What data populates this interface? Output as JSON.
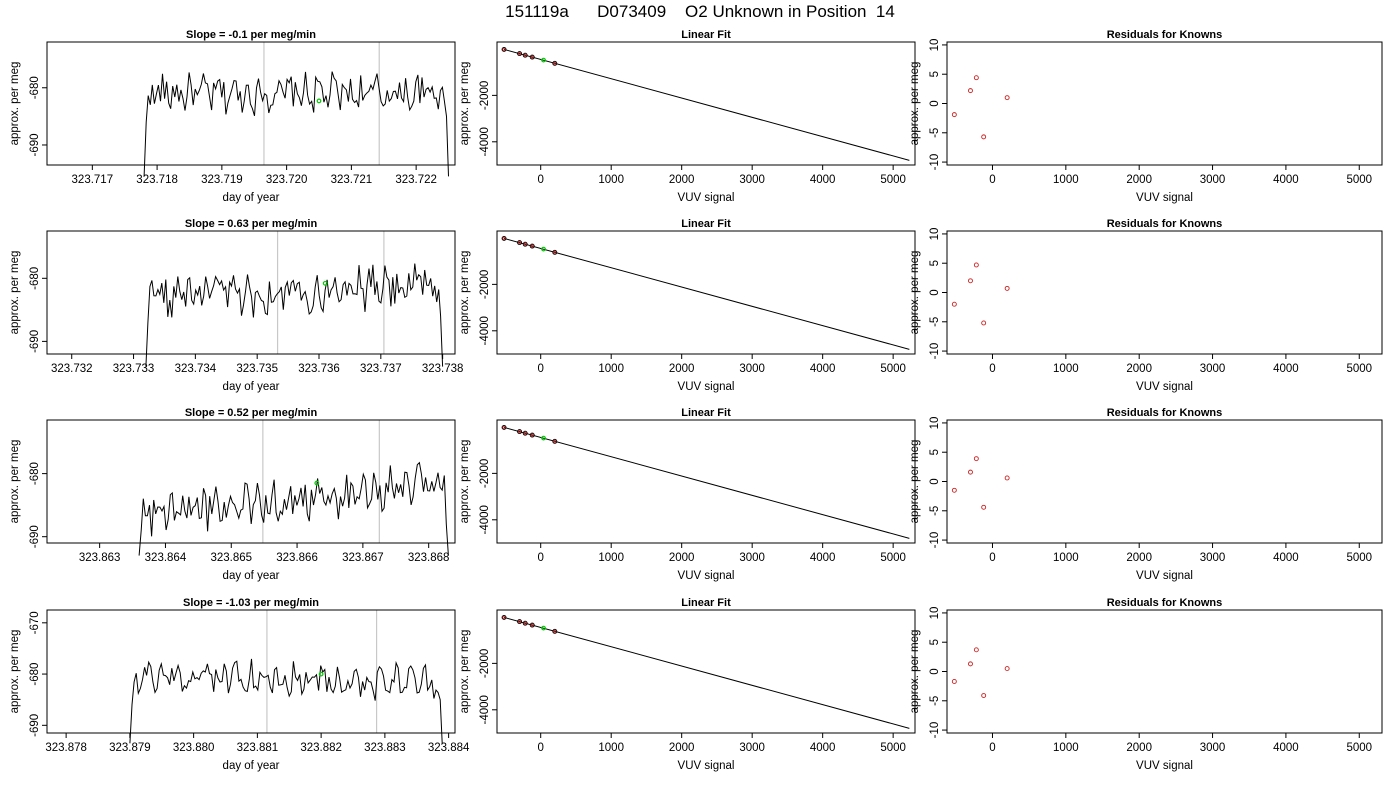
{
  "page": {
    "title": "151119a      D073409    O2 Unknown in Position  14"
  },
  "colors": {
    "trace": "#000000",
    "marker_green": "#00cc00",
    "residual_red": "#cc2222",
    "vertical_guides": "#c8c8c8"
  },
  "chart_data": [
    {
      "type": "line",
      "panel": "slope-row-1",
      "title": "Slope =  -0.1  per meg/min",
      "xlabel": "day of year",
      "ylabel": "approx. per meg",
      "xlim": [
        323.7163,
        323.7226
      ],
      "ylim": [
        -693.5,
        -672
      ],
      "xticks": [
        323.717,
        323.718,
        323.719,
        323.72,
        323.721,
        323.722
      ],
      "xtick_labels": [
        "323.717",
        "323.718",
        "323.719",
        "323.720",
        "323.721",
        "323.722"
      ],
      "yticks": [
        -690,
        -680
      ],
      "ytick_labels": [
        "-690",
        "-680"
      ],
      "vlines": [
        323.71965,
        323.72143
      ],
      "trace_start": 323.7178,
      "trace_end": 323.7225,
      "trace_level": -681,
      "trace_trend": 0.0,
      "marker": {
        "x": 323.7205,
        "y": -682.3
      }
    },
    {
      "type": "scatter",
      "panel": "fit-row-1",
      "title": "Linear Fit",
      "xlabel": "VUV signal",
      "ylabel": "approx. per meg",
      "xlim": [
        -620,
        5310
      ],
      "ylim": [
        -5000,
        300
      ],
      "xticks": [
        0,
        1000,
        2000,
        3000,
        4000,
        5000
      ],
      "xtick_labels": [
        "0",
        "1000",
        "2000",
        "3000",
        "4000",
        "5000"
      ],
      "yticks": [
        -4000,
        -2000
      ],
      "ytick_labels": [
        "-4000",
        "-2000"
      ],
      "fit_line": {
        "x": [
          -520,
          5230
        ],
        "y": [
          -20,
          -4800
        ]
      },
      "points": {
        "x": [
          -520,
          -300,
          -220,
          -120,
          200
        ],
        "y": [
          -20,
          -200,
          -270,
          -350,
          -620
        ]
      },
      "marker": {
        "x": 40,
        "y": -480
      }
    },
    {
      "type": "scatter",
      "panel": "residual-row-1",
      "title": "Residuals for Knowns",
      "xlabel": "VUV signal",
      "ylabel": "approx. per meg",
      "xlim": [
        -620,
        5310
      ],
      "ylim": [
        -10.5,
        10.5
      ],
      "xticks": [
        0,
        1000,
        2000,
        3000,
        4000,
        5000
      ],
      "xtick_labels": [
        "0",
        "1000",
        "2000",
        "3000",
        "4000",
        "5000"
      ],
      "yticks": [
        -10,
        -5,
        0,
        5,
        10
      ],
      "ytick_labels": [
        "-10",
        "-5",
        "0",
        "5",
        "10"
      ],
      "points": {
        "x": [
          -520,
          -300,
          -220,
          -120,
          200
        ],
        "y": [
          -1.9,
          2.2,
          4.4,
          -5.7,
          1.0
        ]
      }
    },
    {
      "type": "line",
      "panel": "slope-row-2",
      "title": "Slope =  0.63  per meg/min",
      "xlabel": "day of year",
      "ylabel": "approx. per meg",
      "xlim": [
        323.7316,
        323.7382
      ],
      "ylim": [
        -692,
        -672.5
      ],
      "xticks": [
        323.732,
        323.733,
        323.734,
        323.735,
        323.736,
        323.737,
        323.738
      ],
      "xtick_labels": [
        "323.732",
        "323.733",
        "323.734",
        "323.735",
        "323.736",
        "323.737",
        "323.738"
      ],
      "yticks": [
        -690,
        -680
      ],
      "ytick_labels": [
        "-690",
        "-680"
      ],
      "vlines": [
        323.73533,
        323.73705
      ],
      "trace_start": 323.7332,
      "trace_end": 323.738,
      "trace_level": -682,
      "trace_trend": 2.0,
      "marker": {
        "x": 323.7361,
        "y": -680.8
      }
    },
    {
      "type": "scatter",
      "panel": "fit-row-2",
      "title": "Linear Fit",
      "xlabel": "VUV signal",
      "ylabel": "approx. per meg",
      "xlim": [
        -620,
        5310
      ],
      "ylim": [
        -5000,
        300
      ],
      "xticks": [
        0,
        1000,
        2000,
        3000,
        4000,
        5000
      ],
      "xtick_labels": [
        "0",
        "1000",
        "2000",
        "3000",
        "4000",
        "5000"
      ],
      "yticks": [
        -4000,
        -2000
      ],
      "ytick_labels": [
        "-4000",
        "-2000"
      ],
      "fit_line": {
        "x": [
          -520,
          5230
        ],
        "y": [
          -20,
          -4800
        ]
      },
      "points": {
        "x": [
          -520,
          -300,
          -220,
          -120,
          200
        ],
        "y": [
          -20,
          -200,
          -270,
          -350,
          -620
        ]
      },
      "marker": {
        "x": 40,
        "y": -480
      }
    },
    {
      "type": "scatter",
      "panel": "residual-row-2",
      "title": "Residuals for Knowns",
      "xlabel": "VUV signal",
      "ylabel": "approx. per meg",
      "xlim": [
        -620,
        5310
      ],
      "ylim": [
        -10.5,
        10.5
      ],
      "xticks": [
        0,
        1000,
        2000,
        3000,
        4000,
        5000
      ],
      "xtick_labels": [
        "0",
        "1000",
        "2000",
        "3000",
        "4000",
        "5000"
      ],
      "yticks": [
        -10,
        -5,
        0,
        5,
        10
      ],
      "ytick_labels": [
        "-10",
        "-5",
        "0",
        "5",
        "10"
      ],
      "points": {
        "x": [
          -520,
          -300,
          -220,
          -120,
          200
        ],
        "y": [
          -2.0,
          2.0,
          4.7,
          -5.2,
          0.7
        ]
      }
    },
    {
      "type": "line",
      "panel": "slope-row-3",
      "title": "Slope =  0.52  per meg/min",
      "xlabel": "day of year",
      "ylabel": "approx. per meg",
      "xlim": [
        323.8622,
        323.8684
      ],
      "ylim": [
        -691,
        -671.5
      ],
      "xticks": [
        323.863,
        323.864,
        323.865,
        323.866,
        323.867,
        323.868
      ],
      "xtick_labels": [
        "323.863",
        "323.864",
        "323.865",
        "323.866",
        "323.867",
        "323.868"
      ],
      "yticks": [
        -690,
        -680
      ],
      "ytick_labels": [
        "-690",
        "-680"
      ],
      "vlines": [
        323.86548,
        323.86725
      ],
      "trace_start": 323.8636,
      "trace_end": 323.8683,
      "trace_level": -684,
      "trace_trend": 5.0,
      "marker": {
        "x": 323.8663,
        "y": -681.5
      }
    },
    {
      "type": "scatter",
      "panel": "fit-row-3",
      "title": "Linear Fit",
      "xlabel": "VUV signal",
      "ylabel": "approx. per meg",
      "xlim": [
        -620,
        5310
      ],
      "ylim": [
        -5000,
        300
      ],
      "xticks": [
        0,
        1000,
        2000,
        3000,
        4000,
        5000
      ],
      "xtick_labels": [
        "0",
        "1000",
        "2000",
        "3000",
        "4000",
        "5000"
      ],
      "yticks": [
        -4000,
        -2000
      ],
      "ytick_labels": [
        "-4000",
        "-2000"
      ],
      "fit_line": {
        "x": [
          -520,
          5230
        ],
        "y": [
          -20,
          -4800
        ]
      },
      "points": {
        "x": [
          -520,
          -300,
          -220,
          -120,
          200
        ],
        "y": [
          -20,
          -200,
          -270,
          -350,
          -620
        ]
      },
      "marker": {
        "x": 40,
        "y": -480
      }
    },
    {
      "type": "scatter",
      "panel": "residual-row-3",
      "title": "Residuals for Knowns",
      "xlabel": "VUV signal",
      "ylabel": "approx. per meg",
      "xlim": [
        -620,
        5310
      ],
      "ylim": [
        -10.5,
        10.5
      ],
      "xticks": [
        0,
        1000,
        2000,
        3000,
        4000,
        5000
      ],
      "xtick_labels": [
        "0",
        "1000",
        "2000",
        "3000",
        "4000",
        "5000"
      ],
      "yticks": [
        -10,
        -5,
        0,
        5,
        10
      ],
      "ytick_labels": [
        "-10",
        "-5",
        "0",
        "5",
        "10"
      ],
      "points": {
        "x": [
          -520,
          -300,
          -220,
          -120,
          200
        ],
        "y": [
          -1.5,
          1.6,
          3.9,
          -4.4,
          0.6
        ]
      }
    },
    {
      "type": "line",
      "panel": "slope-row-4",
      "title": "Slope =  -1.03  per meg/min",
      "xlabel": "day of year",
      "ylabel": "approx. per meg",
      "xlim": [
        323.8777,
        323.8841
      ],
      "ylim": [
        -691.5,
        -667.5
      ],
      "xticks": [
        323.878,
        323.879,
        323.88,
        323.881,
        323.882,
        323.883,
        323.884
      ],
      "xtick_labels": [
        "323.878",
        "323.879",
        "323.880",
        "323.881",
        "323.882",
        "323.883",
        "323.884"
      ],
      "yticks": [
        -690,
        -680,
        -670
      ],
      "ytick_labels": [
        "-690",
        "-680",
        "-670"
      ],
      "vlines": [
        323.88115,
        323.88287
      ],
      "trace_start": 323.879,
      "trace_end": 323.8839,
      "trace_level": -681,
      "trace_trend": -1.0,
      "marker": {
        "x": 323.882,
        "y": -680.0
      }
    },
    {
      "type": "scatter",
      "panel": "fit-row-4",
      "title": "Linear Fit",
      "xlabel": "VUV signal",
      "ylabel": "approx. per meg",
      "xlim": [
        -620,
        5310
      ],
      "ylim": [
        -5000,
        300
      ],
      "xticks": [
        0,
        1000,
        2000,
        3000,
        4000,
        5000
      ],
      "xtick_labels": [
        "0",
        "1000",
        "2000",
        "3000",
        "4000",
        "5000"
      ],
      "yticks": [
        -4000,
        -2000
      ],
      "ytick_labels": [
        "-4000",
        "-2000"
      ],
      "fit_line": {
        "x": [
          -520,
          5230
        ],
        "y": [
          -20,
          -4800
        ]
      },
      "points": {
        "x": [
          -520,
          -300,
          -220,
          -120,
          200
        ],
        "y": [
          -20,
          -200,
          -270,
          -350,
          -620
        ]
      },
      "marker": {
        "x": 40,
        "y": -480
      }
    },
    {
      "type": "scatter",
      "panel": "residual-row-4",
      "title": "Residuals for Knowns",
      "xlabel": "VUV signal",
      "ylabel": "approx. per meg",
      "xlim": [
        -620,
        5310
      ],
      "ylim": [
        -10.5,
        10.5
      ],
      "xticks": [
        0,
        1000,
        2000,
        3000,
        4000,
        5000
      ],
      "xtick_labels": [
        "0",
        "1000",
        "2000",
        "3000",
        "4000",
        "5000"
      ],
      "yticks": [
        -10,
        -5,
        0,
        5,
        10
      ],
      "ytick_labels": [
        "-10",
        "-5",
        "0",
        "5",
        "10"
      ],
      "points": {
        "x": [
          -520,
          -300,
          -220,
          -120,
          200
        ],
        "y": [
          -1.7,
          1.3,
          3.7,
          -4.1,
          0.5
        ]
      }
    }
  ]
}
